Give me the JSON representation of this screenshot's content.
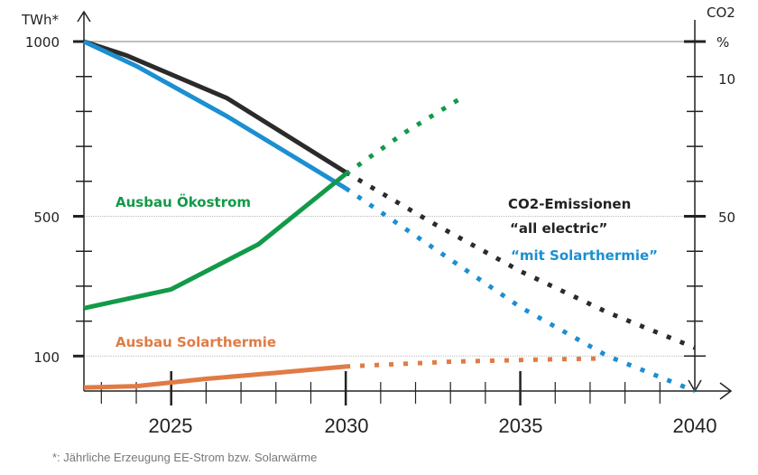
{
  "chart_data": {
    "type": "line",
    "title": "",
    "ylabel_left": "TWh*",
    "ylabel_right": "CO2",
    "right_unit": "%",
    "xlim": [
      2022.5,
      2040
    ],
    "ylim": [
      0,
      1000
    ],
    "x_ticks": [
      "2025",
      "2030",
      "2035",
      "2040"
    ],
    "y_ticks_left": [
      "1000",
      "500",
      "100"
    ],
    "y_ticks_right": [
      "10",
      "50"
    ],
    "grid": "horizontal lines at 1000, 500, 100",
    "series": [
      {
        "name": "“all electric”",
        "color": "#2b2b2b",
        "solid": [
          [
            2022.5,
            1000
          ],
          [
            2023.7,
            961
          ],
          [
            2026.6,
            838
          ],
          [
            2030,
            626
          ]
        ],
        "dotted": [
          [
            2030,
            626
          ],
          [
            2032.5,
            480
          ],
          [
            2035,
            343
          ],
          [
            2037.5,
            225
          ],
          [
            2040,
            124
          ]
        ]
      },
      {
        "name": "“mit Solarthermie”",
        "color": "#1b8fd2",
        "solid": [
          [
            2022.5,
            1000
          ],
          [
            2024,
            930
          ],
          [
            2026.6,
            786
          ],
          [
            2030,
            580
          ]
        ],
        "dotted": [
          [
            2030,
            580
          ],
          [
            2032.5,
            410
          ],
          [
            2035,
            240
          ],
          [
            2037.5,
            100
          ],
          [
            2040,
            0
          ]
        ]
      },
      {
        "name": "Ausbau Ökostrom",
        "color": "#129a48",
        "solid": [
          [
            2022.5,
            237
          ],
          [
            2025,
            291
          ],
          [
            2027.5,
            420
          ],
          [
            2030,
            621
          ]
        ],
        "dotted": [
          [
            2030,
            621
          ],
          [
            2031.7,
            740
          ],
          [
            2033.3,
            838
          ]
        ]
      },
      {
        "name": "Ausbau Solarthermie",
        "color": "#e07b45",
        "solid": [
          [
            2022.5,
            10
          ],
          [
            2024,
            14
          ],
          [
            2026,
            35
          ],
          [
            2028,
            52
          ],
          [
            2030,
            70
          ]
        ],
        "dotted": [
          [
            2030,
            70
          ],
          [
            2033,
            84
          ],
          [
            2035.5,
            90
          ],
          [
            2037.3,
            93
          ]
        ]
      }
    ],
    "annotations": {
      "co2_title": "CO2-Emissionen",
      "all_electric": "“all electric”",
      "mit_solarthermie": "“mit Solarthermie”",
      "oekostrom": "Ausbau Ökostrom",
      "solarthermie": "Ausbau Solarthermie"
    },
    "footnote": "*: Jährliche Erzeugung EE-Strom bzw. Solarwärme"
  }
}
